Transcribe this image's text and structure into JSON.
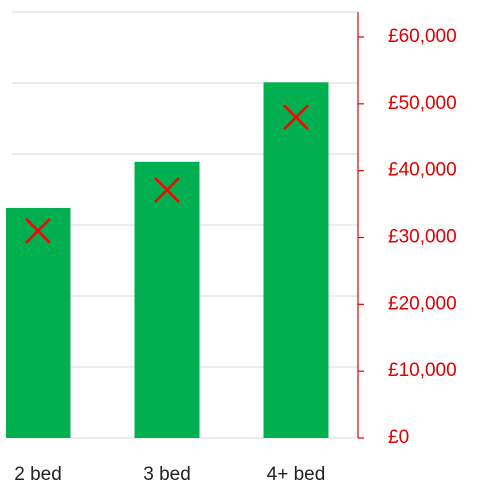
{
  "chart_data": {
    "type": "bar",
    "categories": [
      "2 bed",
      "3 bed",
      "4+ bed"
    ],
    "series": [
      {
        "type": "bar",
        "color": "#00b050",
        "values": [
          32400,
          38900,
          50100
        ]
      },
      {
        "type": "scatter",
        "axis": "y2",
        "color": "#ff0000",
        "values": [
          31000,
          37100,
          48000
        ]
      }
    ],
    "ylim": [
      0,
      60000
    ],
    "yticks": [
      0,
      10000,
      20000,
      30000,
      40000,
      50000,
      60000
    ],
    "y2lim": [
      0,
      60000
    ],
    "y2ticks": [
      {
        "value": 0,
        "label": "£0"
      },
      {
        "value": 10000,
        "label": "£10,000"
      },
      {
        "value": 20000,
        "label": "£20,000"
      },
      {
        "value": 30000,
        "label": "£30,000"
      },
      {
        "value": 40000,
        "label": "£40,000"
      },
      {
        "value": 50000,
        "label": "£50,000"
      },
      {
        "value": 60000,
        "label": "£60,000"
      }
    ],
    "y2color": "#e00000",
    "grid": true
  }
}
